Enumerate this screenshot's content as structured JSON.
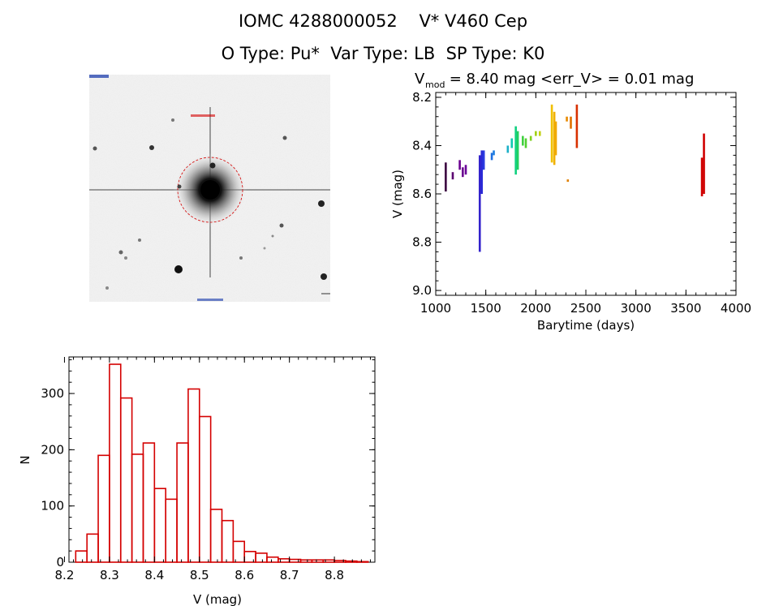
{
  "header": {
    "title_line1": "IOMC 4288000052    V* V460 Cep",
    "title_line2": "O Type: Pu*  Var Type: LB  SP Type: K0"
  },
  "sky_image": {
    "description_type": "finder-chart",
    "aperture_color": "#d40000"
  },
  "chart_data": [
    {
      "type": "scatter",
      "title_prefix": "V",
      "title_subscript": "mod",
      "title_rest": " = 8.40 mag <err_V> = 0.01 mag",
      "xlabel": "Barytime (days)",
      "ylabel": "V (mag)",
      "xlim": [
        1000,
        4000
      ],
      "ylim": [
        9.02,
        8.18
      ],
      "y_inverted": true,
      "xticks": [
        "1000",
        "1500",
        "2000",
        "2500",
        "3000",
        "3500",
        "4000"
      ],
      "yticks": [
        "8.2",
        "8.4",
        "8.6",
        "8.8",
        "9.0"
      ],
      "groups": [
        {
          "x": 1100,
          "ymin": 8.47,
          "ymax": 8.59,
          "color": "#3b0040"
        },
        {
          "x": 1170,
          "ymin": 8.51,
          "ymax": 8.54,
          "color": "#5b0070"
        },
        {
          "x": 1240,
          "ymin": 8.46,
          "ymax": 8.5,
          "color": "#6a0090"
        },
        {
          "x": 1270,
          "ymin": 8.49,
          "ymax": 8.53,
          "color": "#6a0090"
        },
        {
          "x": 1300,
          "ymin": 8.48,
          "ymax": 8.52,
          "color": "#6a0098"
        },
        {
          "x": 1440,
          "ymin": 8.44,
          "ymax": 8.84,
          "color": "#3322cc"
        },
        {
          "x": 1460,
          "ymin": 8.42,
          "ymax": 8.6,
          "color": "#2a2ad6"
        },
        {
          "x": 1480,
          "ymin": 8.42,
          "ymax": 8.5,
          "color": "#2a3ae0"
        },
        {
          "x": 1560,
          "ymin": 8.43,
          "ymax": 8.46,
          "color": "#1e6fe0"
        },
        {
          "x": 1580,
          "ymin": 8.42,
          "ymax": 8.44,
          "color": "#1e7fe0"
        },
        {
          "x": 1720,
          "ymin": 8.4,
          "ymax": 8.43,
          "color": "#1cb0c8"
        },
        {
          "x": 1760,
          "ymin": 8.37,
          "ymax": 8.41,
          "color": "#10c8b0"
        },
        {
          "x": 1800,
          "ymin": 8.32,
          "ymax": 8.52,
          "color": "#10d080"
        },
        {
          "x": 1820,
          "ymin": 8.34,
          "ymax": 8.5,
          "color": "#20d060"
        },
        {
          "x": 1870,
          "ymin": 8.36,
          "ymax": 8.4,
          "color": "#40d040"
        },
        {
          "x": 1900,
          "ymin": 8.37,
          "ymax": 8.41,
          "color": "#50d030"
        },
        {
          "x": 1950,
          "ymin": 8.36,
          "ymax": 8.38,
          "color": "#80d020"
        },
        {
          "x": 2000,
          "ymin": 8.34,
          "ymax": 8.36,
          "color": "#a0d010"
        },
        {
          "x": 2040,
          "ymin": 8.34,
          "ymax": 8.36,
          "color": "#c0d010"
        },
        {
          "x": 2160,
          "ymin": 8.23,
          "ymax": 8.47,
          "color": "#f0c000"
        },
        {
          "x": 2185,
          "ymin": 8.26,
          "ymax": 8.48,
          "color": "#f0b000"
        },
        {
          "x": 2200,
          "ymin": 8.3,
          "ymax": 8.44,
          "color": "#f0a800"
        },
        {
          "x": 2310,
          "ymin": 8.28,
          "ymax": 8.3,
          "color": "#e88a00"
        },
        {
          "x": 2320,
          "ymin": 8.54,
          "ymax": 8.55,
          "color": "#e08000"
        },
        {
          "x": 2350,
          "ymin": 8.28,
          "ymax": 8.33,
          "color": "#e07000"
        },
        {
          "x": 2410,
          "ymin": 8.23,
          "ymax": 8.41,
          "color": "#d83000"
        },
        {
          "x": 3660,
          "ymin": 8.45,
          "ymax": 8.61,
          "color": "#d00000"
        },
        {
          "x": 3680,
          "ymin": 8.35,
          "ymax": 8.6,
          "color": "#d00000"
        }
      ]
    },
    {
      "type": "bar",
      "xlabel": "V (mag)",
      "ylabel": "N",
      "xlim": [
        8.21,
        8.89
      ],
      "ylim": [
        0,
        365
      ],
      "xticks": [
        "8.2",
        "8.3",
        "8.4",
        "8.5",
        "8.6",
        "8.7",
        "8.8"
      ],
      "yticks": [
        "0",
        "100",
        "200",
        "300"
      ],
      "bin_width": 0.025,
      "bin_starts": [
        8.225,
        8.25,
        8.275,
        8.3,
        8.325,
        8.35,
        8.375,
        8.4,
        8.425,
        8.45,
        8.475,
        8.5,
        8.525,
        8.55,
        8.575,
        8.6,
        8.625,
        8.65,
        8.675,
        8.7,
        8.725,
        8.75,
        8.775,
        8.8,
        8.825,
        8.85
      ],
      "values": [
        20,
        50,
        190,
        352,
        292,
        192,
        212,
        131,
        112,
        212,
        308,
        259,
        94,
        74,
        37,
        19,
        16,
        9,
        6,
        5,
        4,
        4,
        4,
        3,
        2,
        1
      ],
      "color": "#d40000"
    }
  ]
}
